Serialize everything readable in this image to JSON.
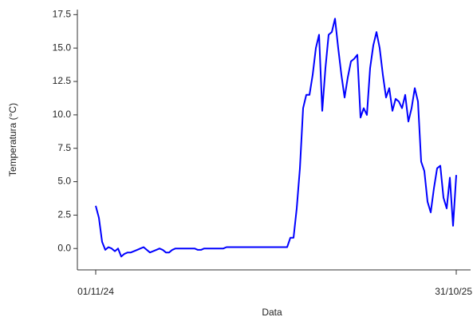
{
  "chart_data": {
    "type": "line",
    "xlabel": "Data",
    "ylabel": "Temperatura (°C)",
    "categories": [
      "01/11/24",
      null,
      null,
      null,
      null,
      null,
      null,
      null,
      null,
      null,
      null,
      null,
      null,
      null,
      null,
      null,
      null,
      null,
      null,
      null,
      null,
      null,
      null,
      null,
      null,
      null,
      null,
      null,
      null,
      null,
      null,
      null,
      null,
      null,
      null,
      null,
      null,
      null,
      null,
      null,
      null,
      null,
      null,
      null,
      null,
      null,
      null,
      null,
      null,
      null,
      null,
      null,
      null,
      null,
      null,
      null,
      null,
      null,
      null,
      null,
      null,
      null,
      null,
      null,
      null,
      null,
      null,
      null,
      null,
      null,
      null,
      null,
      null,
      null,
      null,
      null,
      null,
      null,
      null,
      null,
      null,
      null,
      null,
      null,
      null,
      null,
      null,
      null,
      null,
      null,
      null,
      null,
      null,
      null,
      null,
      null,
      null,
      null,
      null,
      null,
      null,
      null,
      null,
      null,
      null,
      null,
      null,
      null,
      null,
      null,
      null,
      null,
      null,
      "31/10/25"
    ],
    "values": [
      3.2,
      2.3,
      0.5,
      -0.1,
      0.1,
      0.0,
      -0.2,
      0.0,
      -0.6,
      -0.4,
      -0.3,
      -0.3,
      -0.2,
      -0.1,
      0.0,
      0.1,
      -0.1,
      -0.3,
      -0.2,
      -0.1,
      0.0,
      -0.1,
      -0.3,
      -0.3,
      -0.1,
      0.0,
      0.0,
      0.0,
      0.0,
      0.0,
      0.0,
      0.0,
      -0.1,
      -0.1,
      0.0,
      0.0,
      0.0,
      0.0,
      0.0,
      0.0,
      0.0,
      0.1,
      0.1,
      0.1,
      0.1,
      0.1,
      0.1,
      0.1,
      0.1,
      0.1,
      0.1,
      0.1,
      0.1,
      0.1,
      0.1,
      0.1,
      0.1,
      0.1,
      0.1,
      0.1,
      0.1,
      0.8,
      0.8,
      3.0,
      6.0,
      10.5,
      11.5,
      11.5,
      13.0,
      15.0,
      16.0,
      10.3,
      13.5,
      16.0,
      16.2,
      17.2,
      15.0,
      13.0,
      11.3,
      12.8,
      14.0,
      14.2,
      14.5,
      9.8,
      10.5,
      10.0,
      13.5,
      15.2,
      16.2,
      15.0,
      13.0,
      11.3,
      12.0,
      10.3,
      11.2,
      11.0,
      10.5,
      11.5,
      9.5,
      10.5,
      12.0,
      11.0,
      6.5,
      5.8,
      3.5,
      2.7,
      4.5,
      6.0,
      6.2,
      3.8,
      3.0,
      5.3,
      1.7,
      5.5
    ],
    "color": "#0000ff",
    "ylim": [
      -1.6,
      17.7
    ],
    "yticks": [
      {
        "value": 0,
        "label": "0.0"
      },
      {
        "value": 2.5,
        "label": "2.5"
      },
      {
        "value": 5,
        "label": "5.0"
      },
      {
        "value": 7.5,
        "label": "7.5"
      },
      {
        "value": 10,
        "label": "10.0"
      },
      {
        "value": 12.5,
        "label": "12.5"
      },
      {
        "value": 15,
        "label": "15.0"
      },
      {
        "value": 17.5,
        "label": "17.5"
      }
    ]
  }
}
